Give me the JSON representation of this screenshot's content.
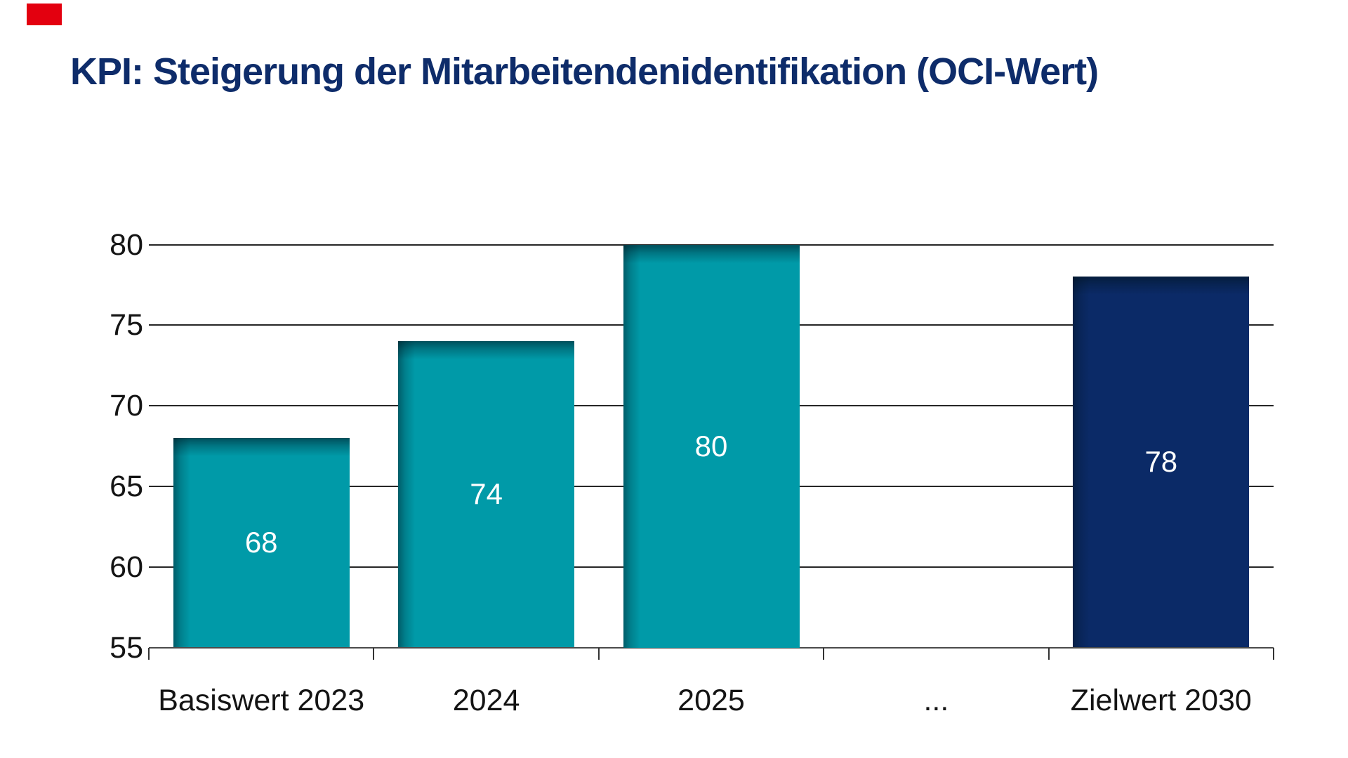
{
  "page": {
    "background": "#ffffff"
  },
  "logo": {
    "name": "red-logo-square",
    "color": "#e3000f"
  },
  "title": {
    "text": "KPI: Steigerung der Mitarbeitendenidentifikation (OCI-Wert)",
    "color": "#0e2c6a"
  },
  "chart_data": {
    "type": "bar",
    "title": "KPI: Steigerung der Mitarbeitendenidentifikation (OCI-Wert)",
    "categories": [
      "Basiswert 2023",
      "2024",
      "2025",
      "...",
      "Zielwert 2030"
    ],
    "values": [
      68,
      74,
      80,
      null,
      78
    ],
    "bar_colors": [
      "#009aa8",
      "#009aa8",
      "#009aa8",
      null,
      "#0b2a67"
    ],
    "value_labels": [
      "68",
      "74",
      "80",
      "",
      "78"
    ],
    "value_label_color": "#ffffff",
    "xlabel": "",
    "ylabel": "",
    "ylim": [
      55,
      80
    ],
    "yticks": [
      55,
      60,
      65,
      70,
      75,
      80
    ],
    "ytick_labels": [
      "55",
      "60",
      "65",
      "70",
      "75",
      "80"
    ],
    "grid": true,
    "legend": false,
    "grid_color": "#262626",
    "axis_color": "#4a4a4a",
    "tick_color": "#333333",
    "tick_label_color": "#141414"
  }
}
